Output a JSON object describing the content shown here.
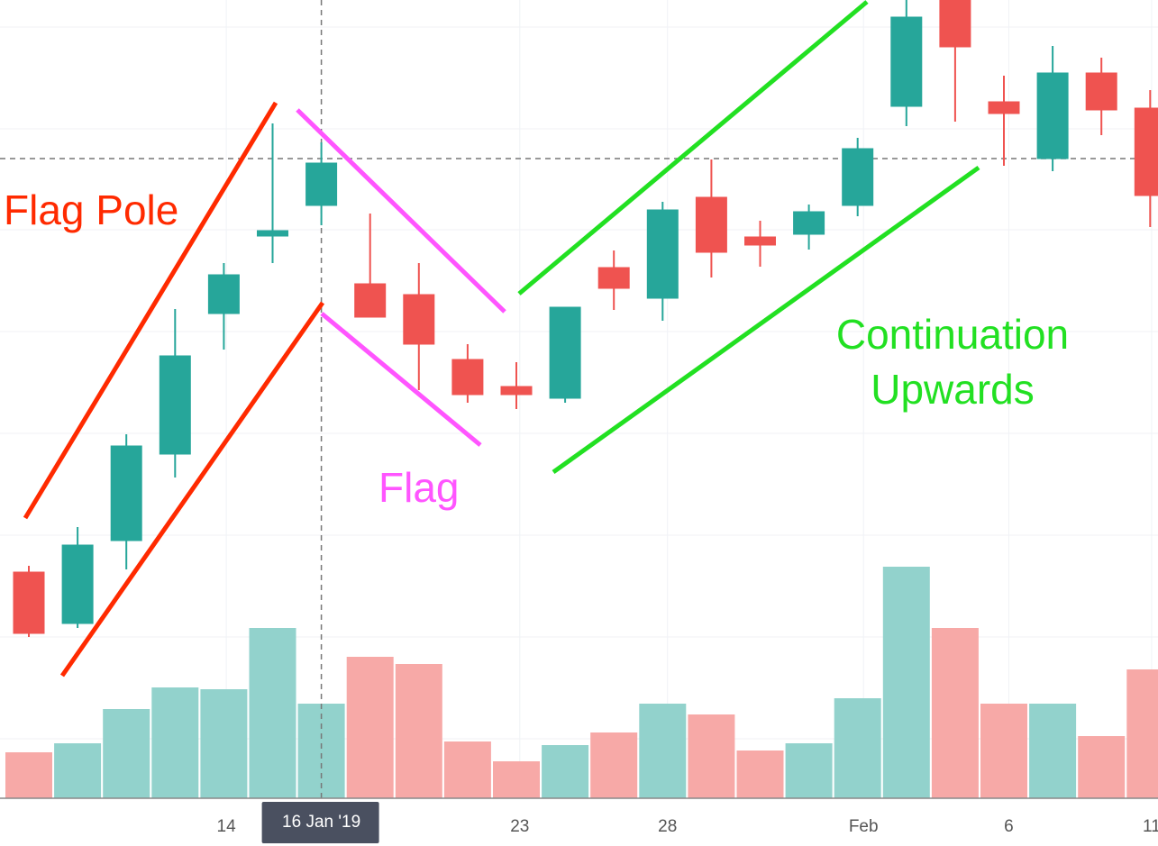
{
  "chart_data": {
    "type": "candlestick",
    "categories": [
      null,
      null,
      null,
      null,
      null,
      null,
      null,
      null,
      null,
      null,
      null,
      null,
      null,
      null,
      null,
      null,
      null,
      null,
      null,
      null,
      null,
      null,
      null,
      null
    ],
    "candles": {
      "open": [
        30.4,
        24.7,
        33.9,
        43.5,
        59.1,
        67.7,
        71.1,
        62.4,
        61.2,
        54.0,
        51.0,
        49.7,
        64.2,
        60.8,
        72.0,
        67.6,
        67.9,
        71.1,
        82.1,
        93.9,
        82.6,
        76.3,
        85.8,
        81.9
      ],
      "high": [
        31.1,
        35.4,
        45.7,
        59.6,
        64.7,
        80.2,
        78.1,
        70.2,
        64.7,
        55.7,
        53.7,
        59.8,
        66.1,
        71.5,
        76.2,
        69.4,
        71.2,
        78.6,
        93.9,
        93.9,
        85.5,
        88.8,
        87.5,
        83.9
      ],
      "low": [
        23.2,
        24.2,
        30.7,
        40.9,
        55.1,
        64.7,
        68.9,
        58.7,
        50.6,
        49.2,
        48.5,
        49.2,
        59.5,
        58.3,
        63.1,
        64.3,
        66.2,
        69.9,
        79.9,
        80.4,
        75.5,
        74.9,
        78.9,
        68.7
      ],
      "close": [
        23.6,
        33.4,
        44.4,
        54.4,
        63.4,
        68.3,
        75.8,
        58.7,
        55.7,
        50.1,
        50.1,
        59.8,
        61.9,
        70.6,
        65.9,
        66.7,
        70.4,
        77.4,
        92.0,
        88.7,
        81.3,
        85.8,
        81.7,
        72.2
      ]
    },
    "volume": [
      5.1,
      6.1,
      9.9,
      12.3,
      12.1,
      18.9,
      10.5,
      15.7,
      14.9,
      6.3,
      4.1,
      5.9,
      7.3,
      10.5,
      9.3,
      5.3,
      6.1,
      11.1,
      25.7,
      18.9,
      10.5,
      10.5,
      6.9,
      14.3
    ],
    "up_color": "#26a69a",
    "down_color": "#ef5350",
    "volume_up_color": "#92d2cc",
    "volume_down_color": "#f7a9a7",
    "ylim": [
      0,
      93.9
    ],
    "volume_ylim": [
      0,
      88.6
    ],
    "yticks": [
      90.9,
      79.6,
      68.4,
      57.1,
      45.8,
      34.5,
      23.2,
      11.9
    ],
    "xticks": [
      {
        "value": 4.05,
        "label": "14"
      },
      {
        "value": 10.07,
        "label": "23"
      },
      {
        "value": 13.1,
        "label": "28"
      },
      {
        "value": 17.12,
        "label": "Feb"
      },
      {
        "value": 20.1,
        "label": "6"
      },
      {
        "value": 23.03,
        "label": "11"
      }
    ],
    "crosshair": {
      "x": 6,
      "y": 76.3,
      "label": "16 Jan '19"
    },
    "grid": true,
    "annotations": [
      "Flag Pole",
      "Flag",
      "Continuation",
      "Upwards"
    ]
  }
}
